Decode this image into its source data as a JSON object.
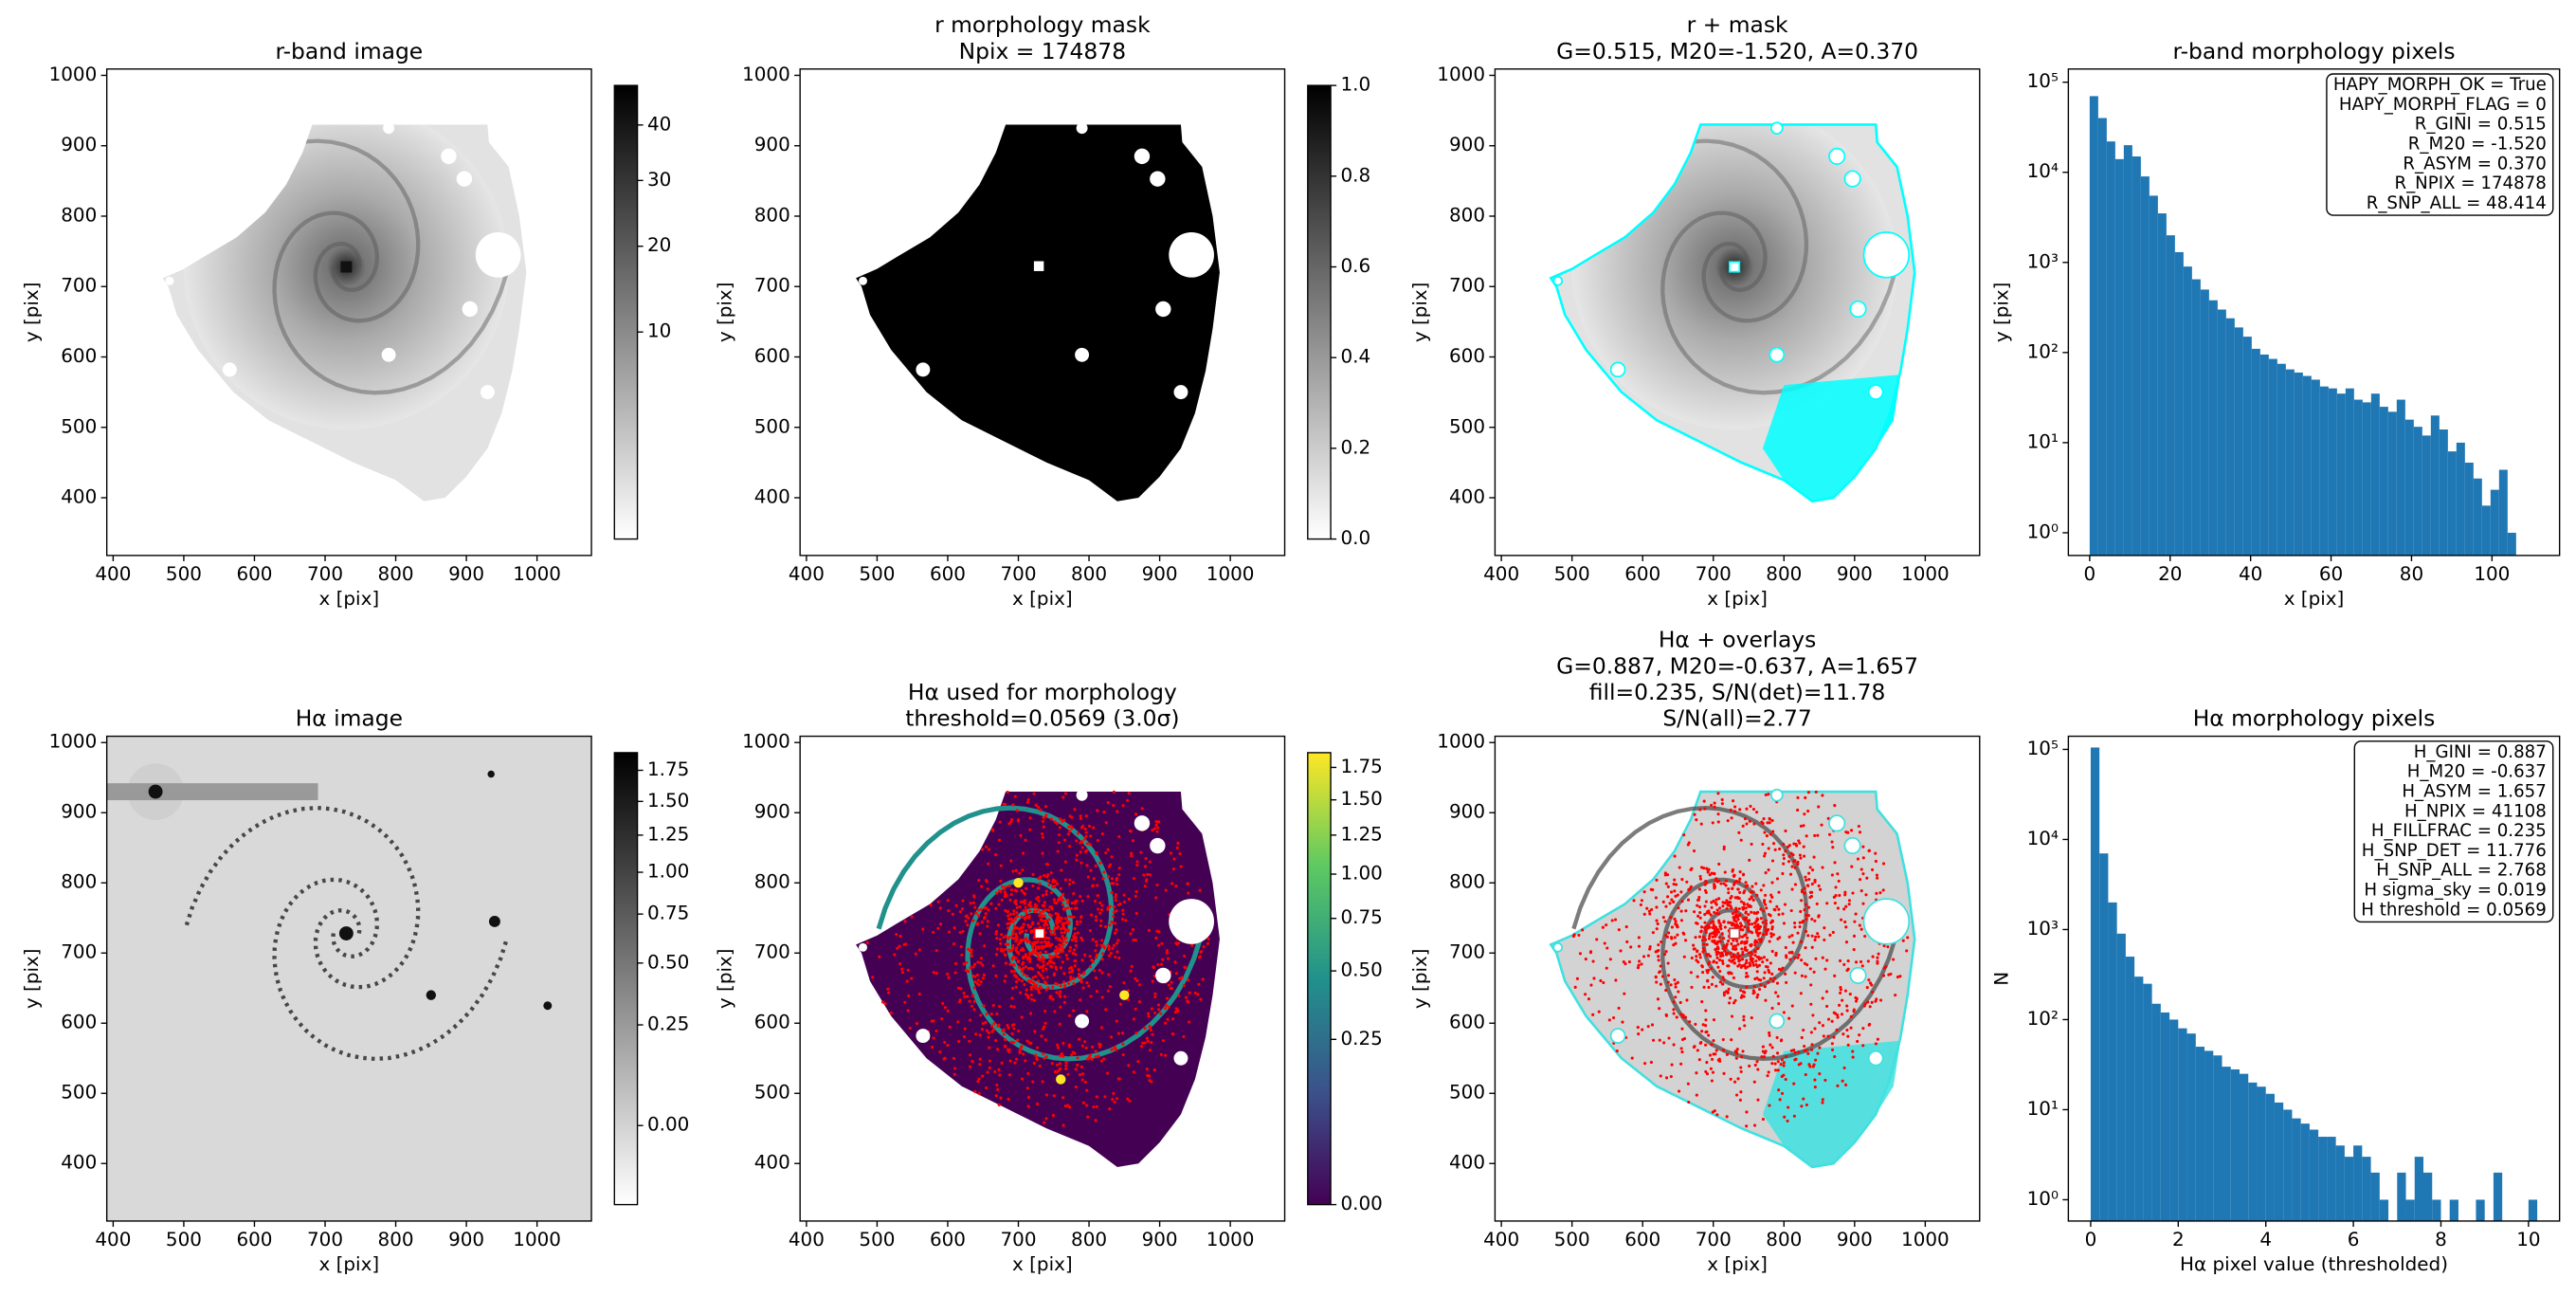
{
  "chart_data": [
    {
      "type": "image",
      "title": [
        "r-band image"
      ],
      "xlabel": "x [pix]",
      "ylabel": "y [pix]",
      "xlim": [
        391,
        1077
      ],
      "ylim": [
        318,
        1009
      ],
      "xticks": [
        400,
        500,
        600,
        700,
        800,
        900,
        1000
      ],
      "yticks": [
        400,
        500,
        600,
        700,
        800,
        900,
        1000
      ],
      "colorbar": {
        "cmap": "gray_r",
        "stretch": "sqrt",
        "clim": [
          0,
          48
        ],
        "ticks": [
          10,
          20,
          30,
          40
        ]
      }
    },
    {
      "type": "image",
      "title": [
        "r morphology mask",
        "Npix = 174878"
      ],
      "xlabel": "x [pix]",
      "ylabel": "y [pix]",
      "xlim": [
        391,
        1077
      ],
      "ylim": [
        318,
        1009
      ],
      "xticks": [
        400,
        500,
        600,
        700,
        800,
        900,
        1000
      ],
      "yticks": [
        400,
        500,
        600,
        700,
        800,
        900,
        1000
      ],
      "colorbar": {
        "cmap": "gray_r",
        "stretch": "linear",
        "clim": [
          0,
          1
        ],
        "ticks": [
          {
            "value": 0,
            "label": "0.0"
          },
          {
            "value": 0.2,
            "label": "0.2"
          },
          {
            "value": 0.4,
            "label": "0.4"
          },
          {
            "value": 0.6,
            "label": "0.6"
          },
          {
            "value": 0.8,
            "label": "0.8"
          },
          {
            "value": 1,
            "label": "1.0"
          }
        ]
      }
    },
    {
      "type": "image",
      "title": [
        "r + mask",
        "G=0.515, M20=-1.520, A=0.370"
      ],
      "xlabel": "x [pix]",
      "ylabel": "y [pix]",
      "xlim": [
        391,
        1077
      ],
      "ylim": [
        318,
        1009
      ],
      "xticks": [
        400,
        500,
        600,
        700,
        800,
        900,
        1000
      ],
      "yticks": [
        400,
        500,
        600,
        700,
        800,
        900,
        1000
      ]
    },
    {
      "type": "histogram",
      "title": [
        "r-band morphology pixels"
      ],
      "xlabel": "x [pix]",
      "ylabel": "y [pix]",
      "log_y": true,
      "color": "#1f77b4",
      "xlim": [
        -5.3,
        116.8
      ],
      "ylim": [
        0.56,
        140000
      ],
      "xticks": [
        0,
        20,
        40,
        60,
        80,
        100
      ],
      "yticks": [
        {
          "value": 1,
          "label": "10⁰"
        },
        {
          "value": 10,
          "label": "10¹"
        },
        {
          "value": 100,
          "label": "10²"
        },
        {
          "value": 1000,
          "label": "10³"
        },
        {
          "value": 10000,
          "label": "10⁴"
        },
        {
          "value": 100000,
          "label": "10⁵"
        }
      ],
      "bins": [
        0,
        2.12,
        4.24,
        6.36,
        8.48,
        10.6,
        12.72,
        14.84,
        16.96,
        19.08,
        21.2,
        23.32,
        25.44,
        27.56,
        29.68,
        31.8,
        33.92,
        36.04,
        38.16,
        40.28,
        42.4,
        44.52,
        46.64,
        48.76,
        50.88,
        53,
        55.12,
        57.24,
        59.36,
        61.48,
        63.6,
        65.72,
        67.84,
        69.96,
        72.08,
        74.2,
        76.32,
        78.44,
        80.56,
        82.68,
        84.8,
        86.92,
        89.04,
        91.16,
        93.28,
        95.4,
        97.52,
        99.64,
        101.76,
        103.88,
        106
      ],
      "values": [
        70000,
        40000,
        22000,
        14000,
        20000,
        15000,
        9000,
        5500,
        3500,
        2000,
        1300,
        900,
        650,
        500,
        380,
        300,
        240,
        190,
        150,
        110,
        95,
        85,
        75,
        65,
        60,
        55,
        50,
        42,
        40,
        35,
        40,
        30,
        28,
        35,
        25,
        22,
        30,
        18,
        15,
        12,
        20,
        14,
        8,
        10,
        6,
        4,
        2,
        3,
        5,
        1
      ],
      "annotation": [
        "HAPY_MORPH_OK = True",
        "HAPY_MORPH_FLAG = 0",
        "R_GINI = 0.515",
        "R_M20 = -1.520",
        "R_ASYM = 0.370",
        "R_NPIX = 174878",
        "R_SNP_ALL = 48.414"
      ]
    },
    {
      "type": "image",
      "title": [
        "Hα image"
      ],
      "xlabel": "x [pix]",
      "ylabel": "y [pix]",
      "xlim": [
        391,
        1077
      ],
      "ylim": [
        318,
        1009
      ],
      "xticks": [
        400,
        500,
        600,
        700,
        800,
        900,
        1000
      ],
      "yticks": [
        400,
        500,
        600,
        700,
        800,
        900,
        1000
      ],
      "colorbar": {
        "cmap": "gray_r",
        "stretch": "sqrt",
        "clim": [
          -0.06,
          1.9
        ],
        "ticks": [
          {
            "value": 0,
            "label": "0.00"
          },
          {
            "value": 0.25,
            "label": "0.25"
          },
          {
            "value": 0.5,
            "label": "0.50"
          },
          {
            "value": 0.75,
            "label": "0.75"
          },
          {
            "value": 1,
            "label": "1.00"
          },
          {
            "value": 1.25,
            "label": "1.25"
          },
          {
            "value": 1.5,
            "label": "1.50"
          },
          {
            "value": 1.75,
            "label": "1.75"
          }
        ]
      }
    },
    {
      "type": "image",
      "title": [
        "Hα used for morphology",
        "threshold=0.0569 (3.0σ)"
      ],
      "xlabel": "x [pix]",
      "ylabel": "y [pix]",
      "xlim": [
        391,
        1077
      ],
      "ylim": [
        318,
        1009
      ],
      "xticks": [
        400,
        500,
        600,
        700,
        800,
        900,
        1000
      ],
      "yticks": [
        400,
        500,
        600,
        700,
        800,
        900,
        1000
      ],
      "colorbar": {
        "cmap": "viridis",
        "stretch": "sqrt",
        "clim": [
          0,
          1.87
        ],
        "ticks": [
          {
            "value": 0,
            "label": "0.00"
          },
          {
            "value": 0.25,
            "label": "0.25"
          },
          {
            "value": 0.5,
            "label": "0.50"
          },
          {
            "value": 0.75,
            "label": "0.75"
          },
          {
            "value": 1,
            "label": "1.00"
          },
          {
            "value": 1.25,
            "label": "1.25"
          },
          {
            "value": 1.5,
            "label": "1.50"
          },
          {
            "value": 1.75,
            "label": "1.75"
          }
        ]
      }
    },
    {
      "type": "image",
      "title": [
        "Hα + overlays",
        "G=0.887, M20=-0.637, A=1.657",
        "fill=0.235, S/N(det)=11.78",
        "S/N(all)=2.77"
      ],
      "xlabel": "x [pix]",
      "ylabel": "y [pix]",
      "xlim": [
        391,
        1077
      ],
      "ylim": [
        318,
        1009
      ],
      "xticks": [
        400,
        500,
        600,
        700,
        800,
        900,
        1000
      ],
      "yticks": [
        400,
        500,
        600,
        700,
        800,
        900,
        1000
      ]
    },
    {
      "type": "histogram",
      "title": [
        "Hα morphology pixels"
      ],
      "xlabel": "Hα pixel value (thresholded)",
      "ylabel": "N",
      "log_y": true,
      "color": "#1f77b4",
      "xlim": [
        -0.51,
        10.71
      ],
      "ylim": [
        0.58,
        140000
      ],
      "xticks": [
        0,
        2,
        4,
        6,
        8,
        10
      ],
      "yticks": [
        {
          "value": 1,
          "label": "10⁰"
        },
        {
          "value": 10,
          "label": "10¹"
        },
        {
          "value": 100,
          "label": "10²"
        },
        {
          "value": 1000,
          "label": "10³"
        },
        {
          "value": 10000,
          "label": "10⁴"
        },
        {
          "value": 100000,
          "label": "10⁵"
        }
      ],
      "bins": [
        0,
        0.2,
        0.4,
        0.6,
        0.8,
        1,
        1.2,
        1.4,
        1.6,
        1.8,
        2,
        2.2,
        2.4,
        2.6,
        2.8,
        3,
        3.2,
        3.4,
        3.6,
        3.8,
        4,
        4.2,
        4.4,
        4.6,
        4.8,
        5,
        5.2,
        5.4,
        5.6,
        5.8,
        6,
        6.2,
        6.4,
        6.6,
        6.8,
        7,
        7.2,
        7.4,
        7.6,
        7.8,
        8,
        8.2,
        8.4,
        8.6,
        8.8,
        9,
        9.2,
        9.4,
        9.6,
        9.8,
        10,
        10.2
      ],
      "values": [
        105000,
        7000,
        2000,
        900,
        500,
        300,
        250,
        150,
        120,
        100,
        80,
        70,
        50,
        45,
        40,
        30,
        28,
        25,
        20,
        18,
        15,
        12,
        10,
        8,
        7,
        6,
        5,
        5,
        4,
        3,
        4,
        3,
        2,
        1,
        0,
        2,
        1,
        3,
        2,
        1,
        0,
        1,
        0,
        0,
        1,
        0,
        2,
        0,
        0,
        0,
        1
      ],
      "annotation": [
        "H_GINI = 0.887",
        "H_M20 = -0.637",
        "H_ASYM = 1.657",
        "H_NPIX = 41108",
        "H_FILLFRAC = 0.235",
        "H_SNP_DET = 11.776",
        "H_SNP_ALL = 2.768",
        "H sigma_sky = 0.019",
        "H threshold = 0.0569"
      ]
    }
  ]
}
